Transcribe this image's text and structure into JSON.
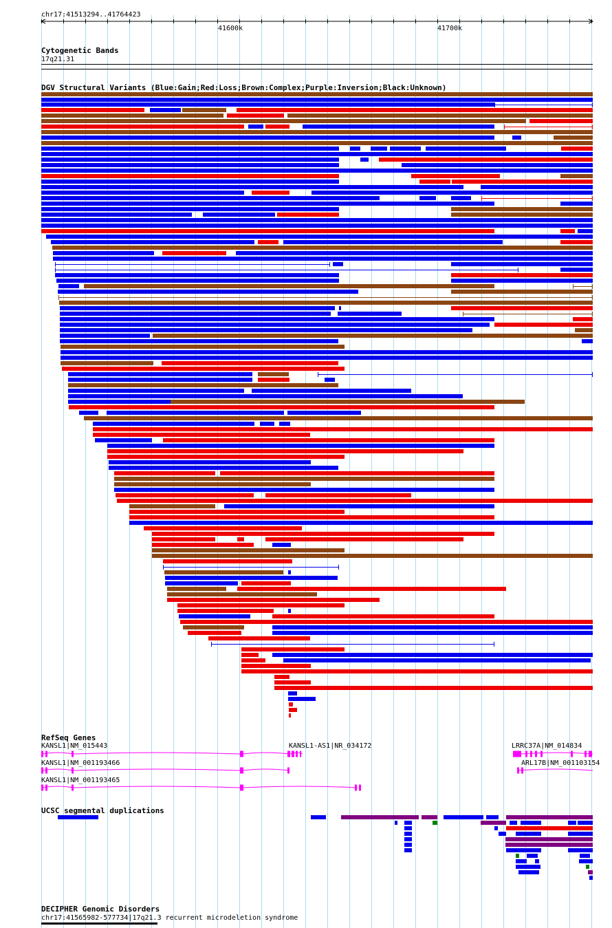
{
  "coordinates": "chr17:41513294..41764423",
  "ruler_ticks": [
    "41600k",
    "41700k"
  ],
  "tracks": {
    "cytoband": {
      "title": "Cytogenetic Bands",
      "label": "17q21.31"
    },
    "dgv": {
      "title": "DGV Structural Variants (Blue:Gain;Red:Loss;Brown:Complex;Purple:Inversion;Black:Unknown)"
    },
    "refseq": {
      "title": "RefSeq Genes",
      "genes": [
        {
          "label": "KANSL1|NM_015443"
        },
        {
          "label": "KANSL1-AS1|NR_034172"
        },
        {
          "label": "LRRC37A|NM_014834"
        },
        {
          "label": "KANSL1|NM_001193466"
        },
        {
          "label": "ARL17B|NM_001103154"
        },
        {
          "label": "KANSL1|NM_001193465"
        }
      ]
    },
    "segdup": {
      "title": "UCSC segmental duplications"
    },
    "decipher": {
      "title": "DECIPHER Genomic Disorders",
      "label": "chr17:41565982-577734|17q21.3 recurrent microdeletion syndrome"
    }
  },
  "colors": {
    "gain": "#0000ee",
    "loss": "#ee0000",
    "complex": "#8b4513",
    "inversion": "#800080",
    "gene": "#ff00ff",
    "segdup_green": "#008000",
    "grid": "#aadcf0"
  },
  "icons": [
    "gain-bar",
    "loss-bar",
    "complex-bar",
    "gene-exon-icon",
    "strand-arrow-icon"
  ]
}
